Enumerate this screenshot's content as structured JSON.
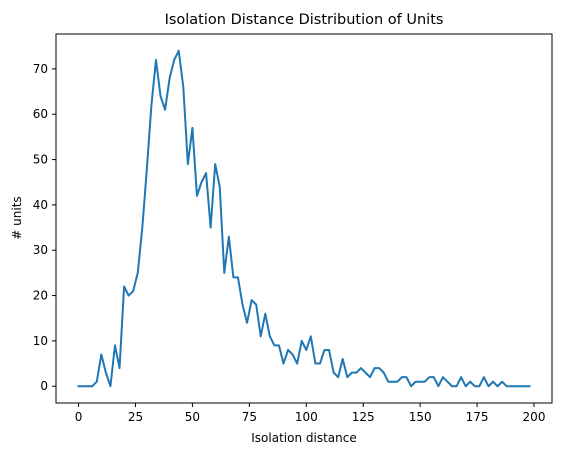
{
  "chart_data": {
    "type": "line",
    "title": "Isolation Distance Distribution of Units",
    "xlabel": "Isolation distance",
    "ylabel": "# units",
    "xlim": [
      -9.9,
      207.9
    ],
    "ylim": [
      -3.7,
      77.7
    ],
    "xticks": [
      0,
      25,
      50,
      75,
      100,
      125,
      150,
      175,
      200
    ],
    "yticks": [
      0,
      10,
      20,
      30,
      40,
      50,
      60,
      70
    ],
    "grid": false,
    "color": "#1f77b4",
    "series": [
      {
        "x": [
          0,
          2,
          4,
          6,
          8,
          10,
          12,
          14,
          16,
          18,
          20,
          22,
          24,
          26,
          28,
          30,
          32,
          34,
          36,
          38,
          40,
          42,
          44,
          46,
          48,
          50,
          52,
          54,
          56,
          58,
          60,
          62,
          64,
          66,
          68,
          70,
          72,
          74,
          76,
          78,
          80,
          82,
          84,
          86,
          88,
          90,
          92,
          94,
          96,
          98,
          100,
          102,
          104,
          106,
          108,
          110,
          112,
          114,
          116,
          118,
          120,
          122,
          124,
          126,
          128,
          130,
          132,
          134,
          136,
          138,
          140,
          142,
          144,
          146,
          148,
          150,
          152,
          154,
          156,
          158,
          160,
          162,
          164,
          166,
          168,
          170,
          172,
          174,
          176,
          178,
          180,
          182,
          184,
          186,
          188,
          190,
          192,
          194,
          196,
          198
        ],
        "y": [
          0,
          0,
          0,
          0,
          1,
          7,
          3,
          0,
          9,
          4,
          22,
          20,
          21,
          25,
          35,
          48,
          62,
          72,
          64,
          61,
          68,
          72,
          74,
          66,
          49,
          57,
          42,
          45,
          47,
          35,
          49,
          44,
          25,
          33,
          24,
          24,
          18,
          14,
          19,
          18,
          11,
          16,
          11,
          9,
          9,
          5,
          8,
          7,
          5,
          10,
          8,
          11,
          5,
          5,
          8,
          8,
          3,
          2,
          6,
          2,
          3,
          3,
          4,
          3,
          2,
          4,
          4,
          3,
          1,
          1,
          1,
          2,
          2,
          0,
          1,
          1,
          1,
          2,
          2,
          0,
          2,
          1,
          0,
          0,
          2,
          0,
          1,
          0,
          0,
          2,
          0,
          1,
          0,
          1,
          0,
          0,
          0,
          0,
          0,
          0
        ]
      }
    ]
  }
}
